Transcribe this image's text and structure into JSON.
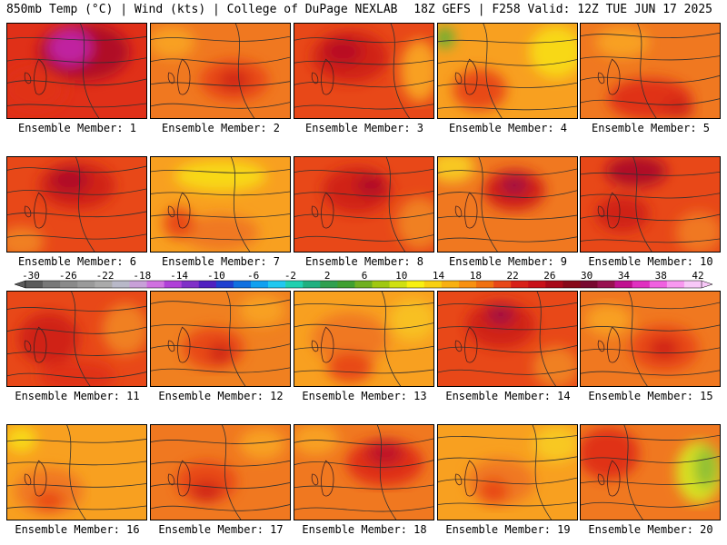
{
  "header": {
    "left": "850mb Temp (°C) | Wind (kts) | College of DuPage NEXLAB",
    "right": "18Z GEFS | F258 Valid: 12Z TUE JUN 17 2025"
  },
  "members": [
    {
      "label": "Ensemble Member: 1",
      "base": "#e03018",
      "blobs": [
        [
          "#b01028",
          0.55,
          0.3,
          0.6,
          0.55
        ],
        [
          "#c020a0",
          0.45,
          0.25,
          0.28,
          0.35
        ],
        [
          "#e03018",
          0.2,
          0.7,
          0.4,
          0.4
        ]
      ]
    },
    {
      "label": "Ensemble Member: 2",
      "base": "#f07820",
      "blobs": [
        [
          "#e84818",
          0.6,
          0.6,
          0.45,
          0.4
        ],
        [
          "#d02818",
          0.6,
          0.6,
          0.2,
          0.2
        ],
        [
          "#f8a020",
          0.15,
          0.2,
          0.3,
          0.3
        ]
      ]
    },
    {
      "label": "Ensemble Member: 3",
      "base": "#e84818",
      "blobs": [
        [
          "#d02018",
          0.4,
          0.35,
          0.5,
          0.5
        ],
        [
          "#b81020",
          0.35,
          0.3,
          0.25,
          0.25
        ],
        [
          "#f8a020",
          0.9,
          0.5,
          0.25,
          0.6
        ]
      ]
    },
    {
      "label": "Ensemble Member: 4",
      "base": "#f8a020",
      "blobs": [
        [
          "#f8d818",
          0.85,
          0.3,
          0.35,
          0.5
        ],
        [
          "#60b030",
          0.05,
          0.15,
          0.12,
          0.2
        ],
        [
          "#e84818",
          0.3,
          0.7,
          0.35,
          0.4
        ]
      ]
    },
    {
      "label": "Ensemble Member: 5",
      "base": "#f07820",
      "blobs": [
        [
          "#e03018",
          0.5,
          0.8,
          0.55,
          0.4
        ],
        [
          "#f8a020",
          0.3,
          0.2,
          0.35,
          0.3
        ],
        [
          "#d02818",
          0.7,
          0.9,
          0.2,
          0.2
        ]
      ]
    },
    {
      "label": "Ensemble Member: 6",
      "base": "#e84818",
      "blobs": [
        [
          "#d02018",
          0.5,
          0.3,
          0.5,
          0.45
        ],
        [
          "#b01028",
          0.45,
          0.25,
          0.25,
          0.25
        ],
        [
          "#f08020",
          0.1,
          0.9,
          0.3,
          0.3
        ]
      ]
    },
    {
      "label": "Ensemble Member: 7",
      "base": "#f8a020",
      "blobs": [
        [
          "#f8d818",
          0.5,
          0.2,
          0.6,
          0.3
        ],
        [
          "#f07820",
          0.5,
          0.8,
          0.5,
          0.35
        ],
        [
          "#e84818",
          0.2,
          0.7,
          0.2,
          0.3
        ]
      ]
    },
    {
      "label": "Ensemble Member: 8",
      "base": "#e84818",
      "blobs": [
        [
          "#d02018",
          0.45,
          0.35,
          0.45,
          0.45
        ],
        [
          "#b01028",
          0.55,
          0.3,
          0.2,
          0.2
        ],
        [
          "#f08020",
          0.9,
          0.7,
          0.3,
          0.5
        ]
      ]
    },
    {
      "label": "Ensemble Member: 9",
      "base": "#f07820",
      "blobs": [
        [
          "#d02018",
          0.55,
          0.35,
          0.4,
          0.4
        ],
        [
          "#a01040",
          0.55,
          0.3,
          0.18,
          0.18
        ],
        [
          "#f8c820",
          0.1,
          0.1,
          0.3,
          0.3
        ]
      ]
    },
    {
      "label": "Ensemble Member: 10",
      "base": "#e84818",
      "blobs": [
        [
          "#b01028",
          0.4,
          0.15,
          0.4,
          0.3
        ],
        [
          "#d02018",
          0.3,
          0.6,
          0.35,
          0.35
        ],
        [
          "#f07820",
          0.85,
          0.8,
          0.3,
          0.4
        ]
      ]
    },
    {
      "label": "Ensemble Member: 11",
      "base": "#e84818",
      "blobs": [
        [
          "#d02018",
          0.3,
          0.5,
          0.4,
          0.5
        ],
        [
          "#f08020",
          0.85,
          0.4,
          0.3,
          0.5
        ],
        [
          "#e03018",
          0.5,
          0.9,
          0.5,
          0.3
        ]
      ]
    },
    {
      "label": "Ensemble Member: 12",
      "base": "#f08020",
      "blobs": [
        [
          "#e84818",
          0.45,
          0.6,
          0.4,
          0.4
        ],
        [
          "#d02818",
          0.5,
          0.65,
          0.15,
          0.2
        ],
        [
          "#f8a020",
          0.8,
          0.2,
          0.3,
          0.3
        ]
      ]
    },
    {
      "label": "Ensemble Member: 13",
      "base": "#f8a020",
      "blobs": [
        [
          "#f07820",
          0.4,
          0.5,
          0.5,
          0.5
        ],
        [
          "#e84818",
          0.4,
          0.8,
          0.3,
          0.3
        ],
        [
          "#f8c020",
          0.85,
          0.3,
          0.3,
          0.4
        ]
      ]
    },
    {
      "label": "Ensemble Member: 14",
      "base": "#e84818",
      "blobs": [
        [
          "#d02018",
          0.45,
          0.35,
          0.45,
          0.45
        ],
        [
          "#a01040",
          0.45,
          0.25,
          0.18,
          0.18
        ],
        [
          "#f08020",
          0.85,
          0.8,
          0.3,
          0.4
        ]
      ]
    },
    {
      "label": "Ensemble Member: 15",
      "base": "#f07820",
      "blobs": [
        [
          "#e84818",
          0.6,
          0.6,
          0.45,
          0.45
        ],
        [
          "#d02018",
          0.6,
          0.6,
          0.2,
          0.2
        ],
        [
          "#f8a020",
          0.2,
          0.3,
          0.3,
          0.3
        ]
      ]
    },
    {
      "label": "Ensemble Member: 16",
      "base": "#f8a020",
      "blobs": [
        [
          "#f07820",
          0.3,
          0.7,
          0.45,
          0.45
        ],
        [
          "#e84818",
          0.3,
          0.8,
          0.2,
          0.2
        ],
        [
          "#f8d818",
          0.1,
          0.15,
          0.2,
          0.25
        ]
      ]
    },
    {
      "label": "Ensemble Member: 17",
      "base": "#f07820",
      "blobs": [
        [
          "#e84818",
          0.4,
          0.6,
          0.4,
          0.4
        ],
        [
          "#d02818",
          0.4,
          0.7,
          0.2,
          0.2
        ],
        [
          "#f8a020",
          0.8,
          0.2,
          0.3,
          0.3
        ]
      ]
    },
    {
      "label": "Ensemble Member: 18",
      "base": "#f07820",
      "blobs": [
        [
          "#e03018",
          0.65,
          0.4,
          0.5,
          0.45
        ],
        [
          "#c01828",
          0.65,
          0.3,
          0.25,
          0.25
        ],
        [
          "#f8a020",
          0.15,
          0.15,
          0.3,
          0.3
        ]
      ]
    },
    {
      "label": "Ensemble Member: 19",
      "base": "#f8a020",
      "blobs": [
        [
          "#f07820",
          0.45,
          0.6,
          0.45,
          0.45
        ],
        [
          "#e84818",
          0.4,
          0.7,
          0.2,
          0.25
        ],
        [
          "#f8c820",
          0.85,
          0.2,
          0.3,
          0.35
        ]
      ]
    },
    {
      "label": "Ensemble Member: 20",
      "base": "#f07820",
      "blobs": [
        [
          "#e03018",
          0.2,
          0.3,
          0.4,
          0.5
        ],
        [
          "#d8e020",
          0.85,
          0.5,
          0.3,
          0.6
        ],
        [
          "#90c030",
          0.9,
          0.45,
          0.15,
          0.4
        ]
      ]
    }
  ],
  "colorbar": {
    "ticks": [
      "-30",
      "-26",
      "-22",
      "-18",
      "-14",
      "-10",
      "-6",
      "-2",
      "2",
      "6",
      "10",
      "14",
      "18",
      "22",
      "26",
      "30",
      "34",
      "38",
      "42"
    ],
    "colors": [
      "#5a5a5a",
      "#787878",
      "#8a8a8a",
      "#9a9a9a",
      "#aaaaaa",
      "#b8b8c8",
      "#c8a0d8",
      "#d070e0",
      "#b040d8",
      "#8030c8",
      "#5020c0",
      "#2040d0",
      "#1070e0",
      "#10a0f0",
      "#20c8f0",
      "#20d0b0",
      "#20b080",
      "#30a050",
      "#40a030",
      "#70b020",
      "#a0c810",
      "#d0e010",
      "#f8f010",
      "#f8d010",
      "#f8b010",
      "#f89010",
      "#f07010",
      "#e84818",
      "#d82018",
      "#c81018",
      "#a80818",
      "#880818",
      "#780830",
      "#981050",
      "#c01090",
      "#e030c0",
      "#f060e0",
      "#f898f0",
      "#f8c8f8"
    ]
  }
}
